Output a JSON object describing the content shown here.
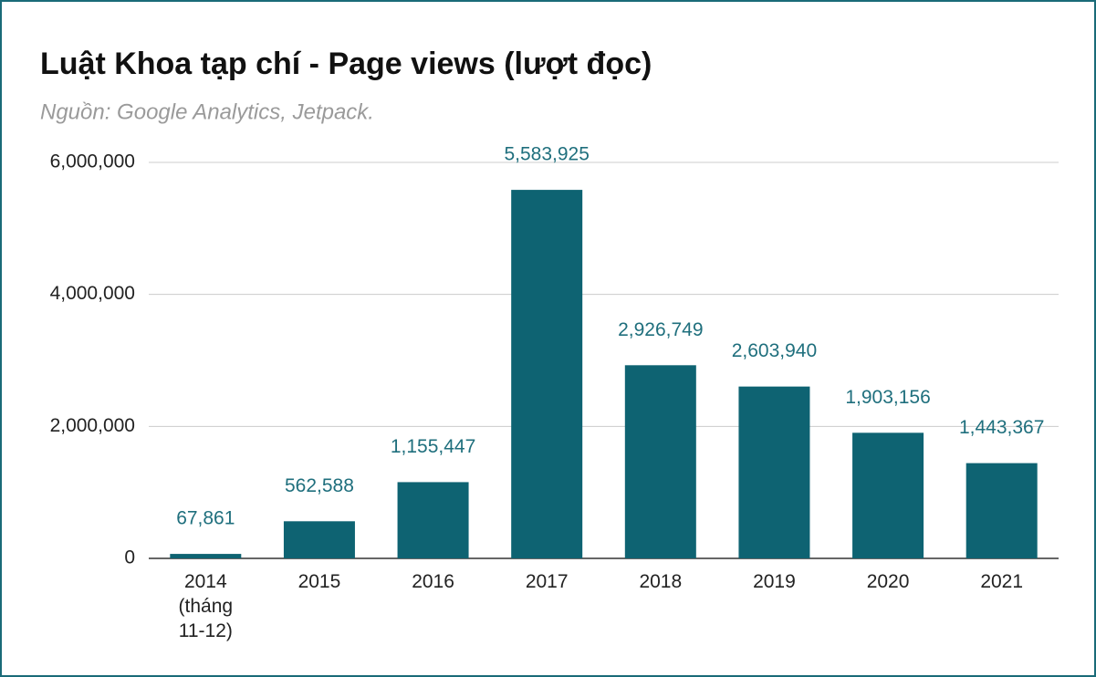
{
  "chart_data": {
    "type": "bar",
    "title": "Luật Khoa tạp chí - Page views (lượt đọc)",
    "subtitle": "Nguồn: Google Analytics, Jetpack.",
    "categories": [
      "2014 (tháng 11-12)",
      "2015",
      "2016",
      "2017",
      "2018",
      "2019",
      "2020",
      "2021"
    ],
    "values": [
      67861,
      562588,
      1155447,
      5583925,
      2926749,
      2603940,
      1903156,
      1443367
    ],
    "value_labels": [
      "67,861",
      "562,588",
      "1,155,447",
      "5,583,925",
      "2,926,749",
      "2,603,940",
      "1,903,156",
      "1,443,367"
    ],
    "color": "#0e6372",
    "ylim": [
      0,
      6000000
    ],
    "yticks": [
      0,
      {
        "value": 2000000,
        "label": "2,000,000"
      },
      {
        "value": 4000000,
        "label": "4,000,000"
      },
      {
        "value": 6000000,
        "label": "6,000,000"
      }
    ],
    "grid": true
  }
}
